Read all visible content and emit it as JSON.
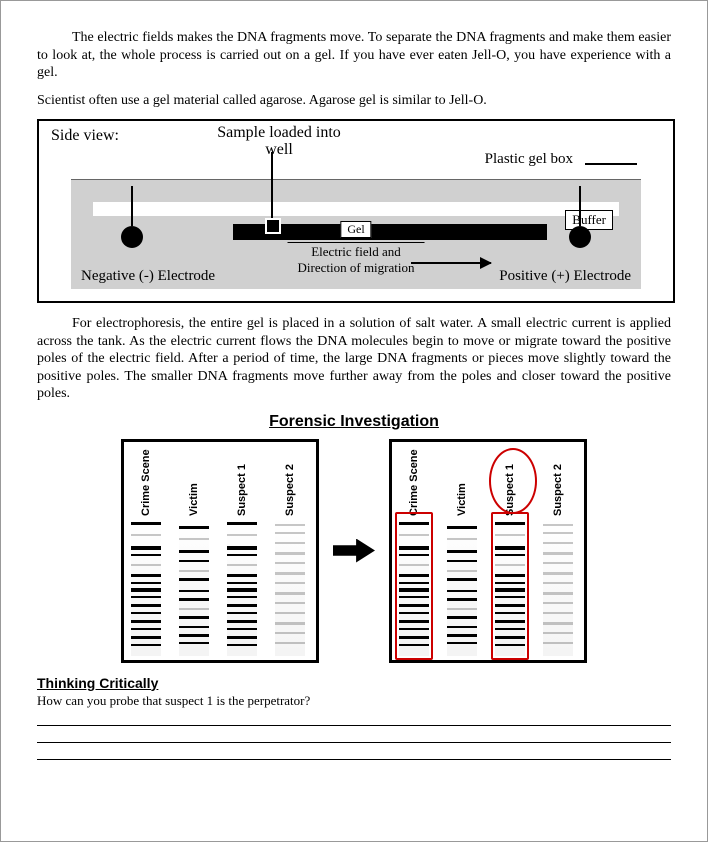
{
  "para1": "The electric fields makes the DNA fragments move. To separate the DNA fragments and make them easier to look at, the whole process is carried out on a gel. If you have ever eaten Jell-O, you have experience with a gel.",
  "para2": "Scientist often use a gel material called agarose. Agarose gel is similar to Jell-O.",
  "diagram": {
    "side_view": "Side view:",
    "sample_loaded": "Sample loaded into well",
    "plastic_gel_box": "Plastic gel box",
    "gel": "Gel",
    "buffer": "Buffer",
    "efield_line1": "Electric field and",
    "efield_line2": "Direction of migration",
    "neg_electrode": "Negative (-) Electrode",
    "pos_electrode": "Positive (+) Electrode",
    "background_color": "#d0d0d0",
    "buffer_color": "#d0d0d0"
  },
  "para3": "For electrophoresis, the entire gel is placed in a solution of salt water. A small electric current is applied across the tank. As the electric current flows the DNA molecules begin to move or migrate toward the positive poles of the electric field. After a period of time, the large DNA fragments or pieces move slightly toward the positive poles. The smaller DNA fragments move further away from the poles and closer toward the positive poles.",
  "forensic_title": "Forensic Investigation",
  "lanes": {
    "labels": [
      "Crime Scene",
      "Victim",
      "Suspect 1",
      "Suspect 2"
    ],
    "highlight_color": "#cc0000",
    "highlight_left_indices": [
      0
    ],
    "highlight_right_indices_box": [
      2
    ],
    "highlight_right_indices_oval": [
      2
    ],
    "band_patterns": {
      "crime": [
        [
          6,
          3
        ],
        [
          18,
          2,
          true
        ],
        [
          30,
          4
        ],
        [
          38,
          2
        ],
        [
          48,
          2,
          true
        ],
        [
          58,
          3
        ],
        [
          66,
          2
        ],
        [
          72,
          4
        ],
        [
          80,
          2
        ],
        [
          88,
          3
        ],
        [
          96,
          2
        ],
        [
          104,
          3
        ],
        [
          112,
          2
        ],
        [
          120,
          3
        ],
        [
          128,
          2
        ]
      ],
      "victim": [
        [
          10,
          3
        ],
        [
          22,
          2,
          true
        ],
        [
          34,
          3
        ],
        [
          44,
          2
        ],
        [
          54,
          2,
          true
        ],
        [
          62,
          3
        ],
        [
          74,
          2
        ],
        [
          82,
          3
        ],
        [
          92,
          2,
          true
        ],
        [
          100,
          3
        ],
        [
          110,
          2
        ],
        [
          118,
          3
        ],
        [
          126,
          2
        ]
      ],
      "suspect1": [
        [
          6,
          3
        ],
        [
          18,
          2,
          true
        ],
        [
          30,
          4
        ],
        [
          38,
          2
        ],
        [
          48,
          2,
          true
        ],
        [
          58,
          3
        ],
        [
          66,
          2
        ],
        [
          72,
          4
        ],
        [
          80,
          2
        ],
        [
          88,
          3
        ],
        [
          96,
          2
        ],
        [
          104,
          3
        ],
        [
          112,
          2
        ],
        [
          120,
          3
        ],
        [
          128,
          2
        ]
      ],
      "suspect2": [
        [
          8,
          2,
          true
        ],
        [
          16,
          2,
          true
        ],
        [
          26,
          2,
          true
        ],
        [
          36,
          3,
          true
        ],
        [
          46,
          2,
          true
        ],
        [
          56,
          3,
          true
        ],
        [
          66,
          2,
          true
        ],
        [
          76,
          3,
          true
        ],
        [
          86,
          2,
          true
        ],
        [
          96,
          2,
          true
        ],
        [
          106,
          3,
          true
        ],
        [
          116,
          2,
          true
        ],
        [
          126,
          2,
          true
        ]
      ]
    }
  },
  "thinking_critically": "Thinking Critically",
  "question": "How can you probe that suspect 1 is the perpetrator?"
}
